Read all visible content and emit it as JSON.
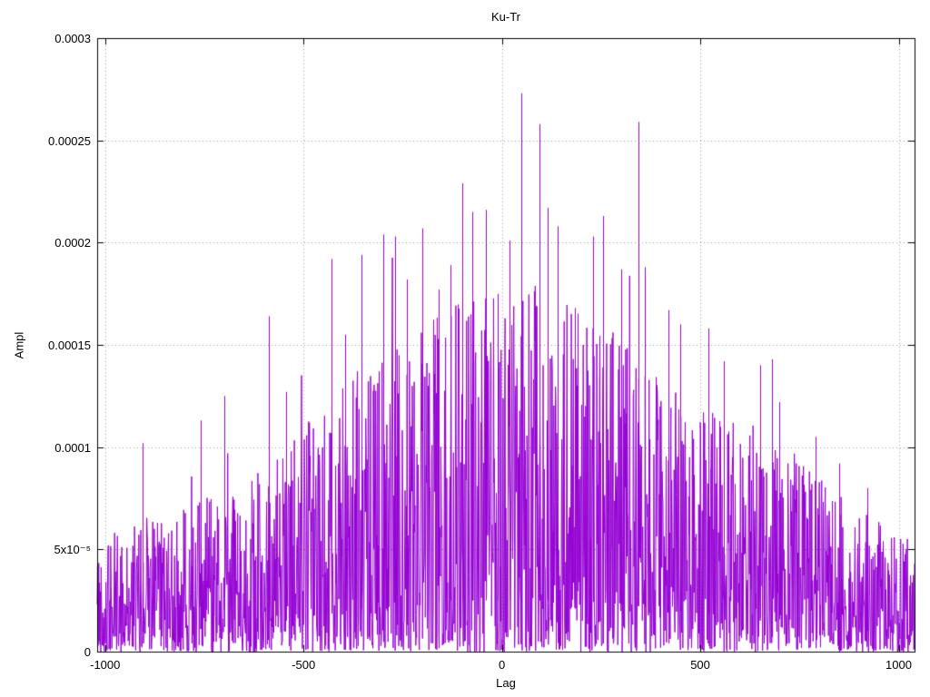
{
  "chart_data": {
    "type": "line",
    "render_style": "dense noisy impulse-like trace (gnuplot style)",
    "title": "Ku-Tr",
    "xlabel": "Lag",
    "ylabel": "Ampl",
    "line_color": "#9400d3",
    "grid": "dotted",
    "grid_color": "#999999",
    "legend": "none",
    "xlim": [
      -1020,
      1040
    ],
    "ylim": [
      0,
      0.0003
    ],
    "xticks": [
      -1000,
      -500,
      0,
      500,
      1000
    ],
    "xtick_labels": [
      "-1000",
      "-500",
      "0",
      "500",
      "1000"
    ],
    "ytick_values": [
      0,
      5e-05,
      0.0001,
      0.00015,
      0.0002,
      0.00025,
      0.0003
    ],
    "ytick_labels": [
      "0",
      "5x10⁻⁵",
      "0.0001",
      "0.00015",
      "0.0002",
      "0.00025",
      "0.0003"
    ],
    "envelope": {
      "lags": [
        -1020,
        -900,
        -800,
        -700,
        -600,
        -500,
        -400,
        -300,
        -200,
        -100,
        0,
        100,
        200,
        300,
        400,
        500,
        600,
        700,
        800,
        900,
        1000,
        1040
      ],
      "ampl": [
        5.5e-05,
        6.5e-05,
        7e-05,
        8e-05,
        9e-05,
        0.00011,
        0.00013,
        0.00015,
        0.00016,
        0.000175,
        0.00018,
        0.00018,
        0.000165,
        0.000155,
        0.00014,
        0.000125,
        0.000115,
        0.000105,
        8.5e-05,
        7e-05,
        6e-05,
        5.5e-05
      ]
    },
    "peaks": [
      [
        -905,
        0.000102
      ],
      [
        -760,
        0.000113
      ],
      [
        -700,
        0.000125
      ],
      [
        -588,
        0.000164
      ],
      [
        -545,
        0.000127
      ],
      [
        -430,
        0.000192
      ],
      [
        -395,
        0.000155
      ],
      [
        -355,
        0.000194
      ],
      [
        -300,
        0.000204
      ],
      [
        -270,
        0.000203
      ],
      [
        -240,
        0.000182
      ],
      [
        -200,
        0.000207
      ],
      [
        -160,
        0.000177
      ],
      [
        -130,
        0.000189
      ],
      [
        -100,
        0.000229
      ],
      [
        -75,
        0.000215
      ],
      [
        -40,
        0.000216
      ],
      [
        -10,
        0.000175
      ],
      [
        20,
        0.000201
      ],
      [
        48,
        0.000273
      ],
      [
        95,
        0.000258
      ],
      [
        115,
        0.000217
      ],
      [
        140,
        0.000208
      ],
      [
        185,
        0.000168
      ],
      [
        230,
        0.000203
      ],
      [
        255,
        0.000213
      ],
      [
        300,
        0.000187
      ],
      [
        345,
        0.000259
      ],
      [
        360,
        0.000188
      ],
      [
        420,
        0.000167
      ],
      [
        450,
        0.00016
      ],
      [
        520,
        0.000158
      ],
      [
        560,
        0.000142
      ],
      [
        650,
        0.00014
      ],
      [
        680,
        0.000143
      ],
      [
        700,
        0.000122
      ],
      [
        790,
        0.000105
      ],
      [
        850,
        9.2e-05
      ],
      [
        920,
        8e-05
      ]
    ],
    "noise_seed": 42,
    "noise_exponent": 1.7,
    "spike_probability": 0.006
  }
}
